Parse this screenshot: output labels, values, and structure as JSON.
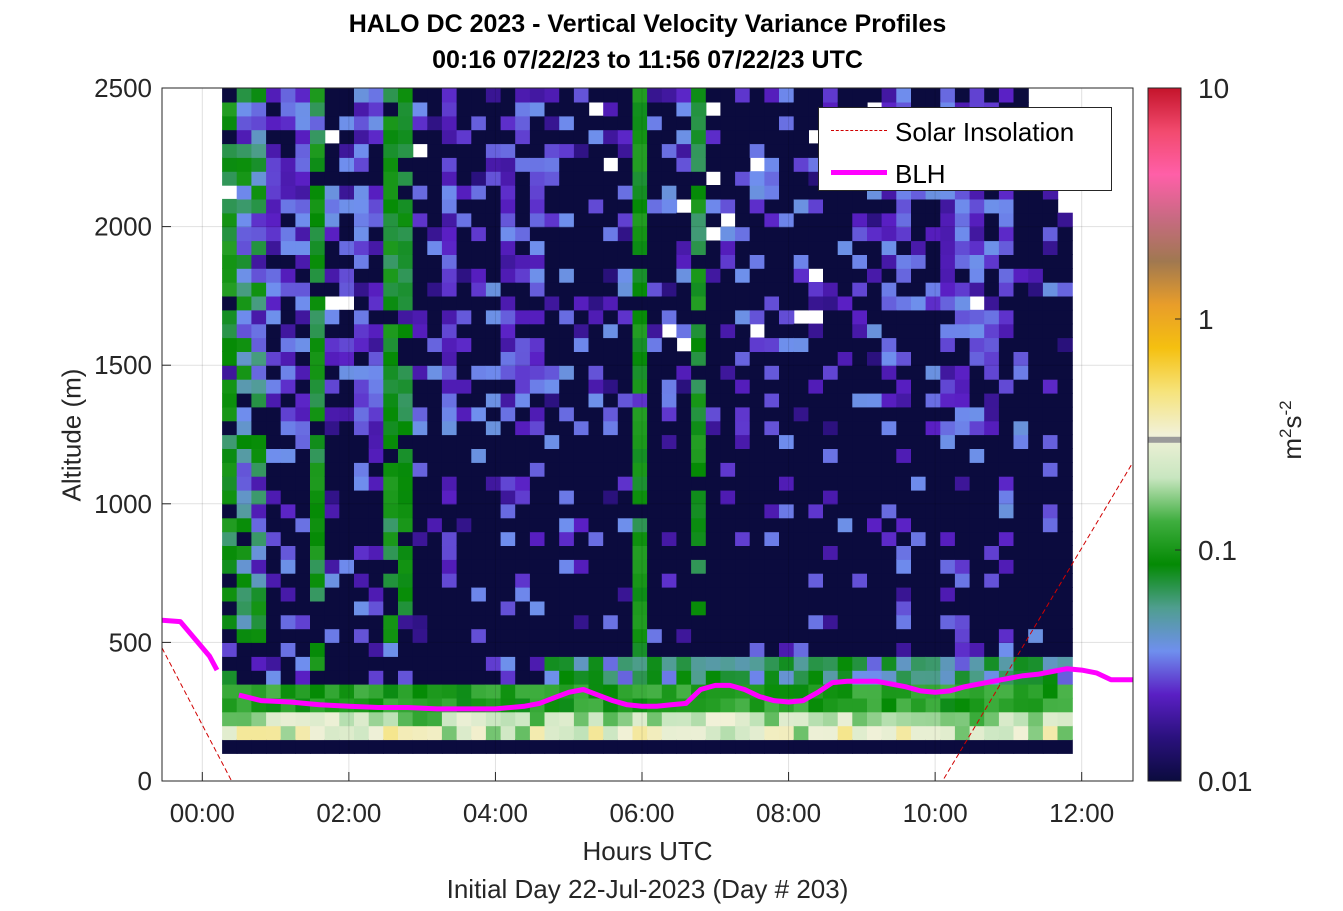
{
  "chart_data": {
    "type": "heatmap",
    "title": "HALO DC 2023 - Vertical Velocity Variance Profiles",
    "subtitle": "00:16 07/22/23 to 11:56 07/22/23  UTC",
    "xlabel": "Hours UTC",
    "ylabel": "Altitude (m)",
    "footer": "Initial Day 22-Jul-2023 (Day # 203)",
    "xlim": [
      -0.55,
      12.7
    ],
    "ylim": [
      0,
      2500
    ],
    "x_ticks": [
      "00:00",
      "02:00",
      "04:00",
      "06:00",
      "08:00",
      "10:00",
      "12:00"
    ],
    "y_ticks": [
      "0",
      "500",
      "1000",
      "1500",
      "2000",
      "2500"
    ],
    "grid": true,
    "legend_position": "top-right",
    "colorbar": {
      "label": "m",
      "label_sup1": "2",
      "label_mid": "s",
      "label_sup2": "-2",
      "scale": "log",
      "range": [
        0.01,
        10
      ],
      "ticks": [
        "0.01",
        "0.1",
        "1",
        "10"
      ],
      "colors": [
        "#0b0b3e",
        "#2a117d",
        "#5a1fc4",
        "#6f8fee",
        "#4f9e8f",
        "#048a04",
        "#3fae3f",
        "#c8e6c0",
        "#f1f1d8",
        "#f6e37a",
        "#f5c010",
        "#e89d2a",
        "#a07850",
        "#c86a82",
        "#ff5fa8",
        "#f24a6e",
        "#c4142b"
      ]
    },
    "series": [
      {
        "name": "Solar Insolation",
        "color": "#d00000",
        "style": "dashed",
        "x": [
          -0.55,
          0.4,
          10.1,
          12.7
        ],
        "y": [
          480,
          0,
          0,
          1150
        ]
      },
      {
        "name": "BLH",
        "color": "#ff00ff",
        "style": "solid",
        "segments": [
          {
            "x": [
              -0.55,
              -0.3,
              0.1,
              0.2
            ],
            "y": [
              580,
              575,
              450,
              400
            ]
          },
          {
            "x": [
              0.5,
              0.8,
              1.2,
              1.6,
              2.0,
              2.4,
              2.8,
              3.2,
              3.6,
              4.0,
              4.4,
              4.6,
              4.8,
              5.0,
              5.2,
              5.4,
              5.6,
              5.8,
              6.0,
              6.2,
              6.4,
              6.6,
              6.8,
              7.0,
              7.2,
              7.4,
              7.6,
              7.8,
              8.0,
              8.2,
              8.4,
              8.6,
              8.8,
              9.0,
              9.2,
              9.4,
              9.6,
              9.8,
              10.0,
              10.2,
              10.4,
              10.6,
              10.8,
              11.0,
              11.2,
              11.4,
              11.6,
              11.8,
              12.0,
              12.2,
              12.4,
              12.7
            ],
            "y": [
              310,
              290,
              285,
              275,
              270,
              265,
              265,
              260,
              260,
              260,
              270,
              280,
              300,
              320,
              330,
              310,
              290,
              275,
              270,
              270,
              275,
              280,
              330,
              345,
              345,
              330,
              305,
              290,
              285,
              290,
              320,
              355,
              360,
              360,
              360,
              350,
              340,
              325,
              320,
              325,
              340,
              350,
              360,
              370,
              380,
              385,
              395,
              405,
              400,
              390,
              365,
              365
            ]
          }
        ]
      }
    ],
    "heatmap": {
      "x_start": 0.27,
      "x_end": 11.96,
      "cell_hours": 0.2,
      "cell_meters": 50,
      "alt_base": 100,
      "alt_top": 2500,
      "value_range_log10": [
        -2,
        1
      ],
      "description_bands": [
        {
          "z_min": 100,
          "z_max": 150,
          "value": 0.01
        },
        {
          "z_min": 150,
          "z_max": 250,
          "value": 0.3
        },
        {
          "z_min": 250,
          "z_max": 350,
          "value": 0.12
        }
      ]
    }
  }
}
